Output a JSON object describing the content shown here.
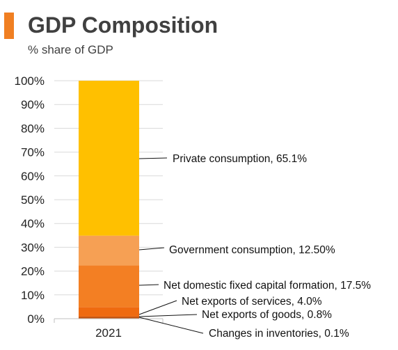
{
  "header": {
    "title": "GDP Composition",
    "subtitle": "% share of GDP",
    "accent_color": "#f07f22"
  },
  "chart_data": {
    "type": "bar",
    "stacked": true,
    "categories": [
      "2021"
    ],
    "ylim": [
      0,
      100
    ],
    "yticks": [
      "0%",
      "10%",
      "20%",
      "30%",
      "40%",
      "50%",
      "60%",
      "70%",
      "80%",
      "90%",
      "100%"
    ],
    "grid": true,
    "series": [
      {
        "name": "Changes in inventories",
        "values": [
          0.1
        ],
        "color": "#8a3a0c",
        "label": "Changes in inventories, 0.1%"
      },
      {
        "name": "Net exports of goods",
        "values": [
          0.8
        ],
        "color": "#c45410",
        "label": "Net exports of goods, 0.8%"
      },
      {
        "name": "Net exports of services",
        "values": [
          4.0
        ],
        "color": "#ef6a10",
        "label": "Net exports of services, 4.0%"
      },
      {
        "name": "Net domestic fixed capital formation",
        "values": [
          17.5
        ],
        "color": "#f37f23",
        "label": "Net domestic fixed capital formation, 17.5%"
      },
      {
        "name": "Government consumption",
        "values": [
          12.5
        ],
        "color": "#f6a054",
        "label": "Government consumption, 12.50%"
      },
      {
        "name": "Private consumption",
        "values": [
          65.1
        ],
        "color": "#ffc000",
        "label": "Private consumption, 65.1%"
      }
    ]
  }
}
